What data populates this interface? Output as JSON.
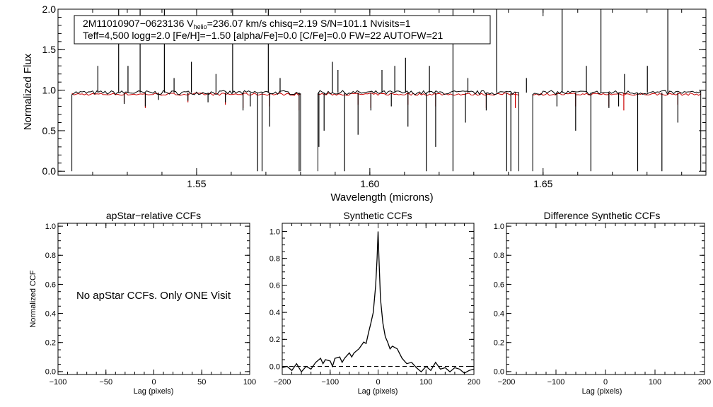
{
  "info_box": {
    "line1_prefix": "2M11010907−0623136  V",
    "line1_sub": "helio",
    "line1_suffix": "=236.07 km/s  chisq=2.19  S/N=101.1  Nvisits=1",
    "line2": "Teff=4,500 logg=2.0 [Fe/H]=−1.50 [alpha/Fe]=0.0 [C/Fe]=0.0 FW=22 AUTOFW=21"
  },
  "no_ccf_message": "No apStar CCFs.  Only ONE Visit",
  "colors": {
    "observed": "#000000",
    "model": "#cc0000"
  },
  "chart_data": [
    {
      "type": "line",
      "id": "spectrum",
      "title": "",
      "xlabel": "Wavelength (microns)",
      "ylabel": "Normalized Flux",
      "xlim": [
        1.51,
        1.697
      ],
      "ylim": [
        -0.05,
        2.0
      ],
      "xticks": [
        "1.55",
        "1.60",
        "1.65"
      ],
      "xtick_values": [
        1.55,
        1.6,
        1.65
      ],
      "yticks": [
        "0.0",
        "0.5",
        "1.0",
        "1.5",
        "2.0"
      ],
      "ytick_values": [
        0.0,
        0.5,
        1.0,
        1.5,
        2.0
      ],
      "chips": [
        [
          1.514,
          1.58
        ],
        [
          1.585,
          1.643
        ],
        [
          1.647,
          1.6955
        ]
      ],
      "continuum": 0.97,
      "series": [
        {
          "name": "observed",
          "color": "#000000"
        },
        {
          "name": "model",
          "color": "#cc0000"
        }
      ],
      "spikes": [
        {
          "x": 1.5215,
          "y": 1.3
        },
        {
          "x": 1.5275,
          "y": 2.0
        },
        {
          "x": 1.5302,
          "y": 1.3
        },
        {
          "x": 1.5337,
          "y": 2.0
        },
        {
          "x": 1.5407,
          "y": 2.0
        },
        {
          "x": 1.5435,
          "y": 1.15
        },
        {
          "x": 1.5485,
          "y": 1.35
        },
        {
          "x": 1.5556,
          "y": 1.2
        },
        {
          "x": 1.5604,
          "y": 2.0
        },
        {
          "x": 1.5707,
          "y": 2.0
        },
        {
          "x": 1.5741,
          "y": 1.15
        },
        {
          "x": 1.5892,
          "y": 1.35
        },
        {
          "x": 1.5908,
          "y": 1.25
        },
        {
          "x": 1.6035,
          "y": 1.25
        },
        {
          "x": 1.6072,
          "y": 1.3
        },
        {
          "x": 1.6103,
          "y": 1.4
        },
        {
          "x": 1.6172,
          "y": 1.3
        },
        {
          "x": 1.624,
          "y": 2.0
        },
        {
          "x": 1.6283,
          "y": 1.15
        },
        {
          "x": 1.6366,
          "y": 2.0
        },
        {
          "x": 1.6452,
          "y": 1.15
        },
        {
          "x": 1.6555,
          "y": 2.0
        },
        {
          "x": 1.6625,
          "y": 1.3
        },
        {
          "x": 1.6667,
          "y": 2.0
        },
        {
          "x": 1.6735,
          "y": 1.2
        },
        {
          "x": 1.6801,
          "y": 1.3
        },
        {
          "x": 1.686,
          "y": 2.0
        }
      ],
      "dips": [
        {
          "x": 1.5291,
          "y": 0.83
        },
        {
          "x": 1.5352,
          "y": 0.8
        },
        {
          "x": 1.539,
          "y": 0.88
        },
        {
          "x": 1.5475,
          "y": 0.87
        },
        {
          "x": 1.5533,
          "y": 0.85
        },
        {
          "x": 1.5583,
          "y": 0.85
        },
        {
          "x": 1.5634,
          "y": 0.75
        },
        {
          "x": 1.5655,
          "y": 0.8
        },
        {
          "x": 1.5676,
          "y": 0.0
        },
        {
          "x": 1.5689,
          "y": 0.0
        },
        {
          "x": 1.5711,
          "y": 0.55
        },
        {
          "x": 1.5796,
          "y": 0.0
        },
        {
          "x": 1.5853,
          "y": 0.3
        },
        {
          "x": 1.5868,
          "y": 0.5
        },
        {
          "x": 1.5927,
          "y": 0.0
        },
        {
          "x": 1.5966,
          "y": 0.45
        },
        {
          "x": 1.6003,
          "y": 0.75
        },
        {
          "x": 1.6062,
          "y": 0.8
        },
        {
          "x": 1.611,
          "y": 0.55
        },
        {
          "x": 1.6163,
          "y": 0.0
        },
        {
          "x": 1.619,
          "y": 0.3
        },
        {
          "x": 1.624,
          "y": 0.0
        },
        {
          "x": 1.6276,
          "y": 0.6
        },
        {
          "x": 1.6336,
          "y": 0.75
        },
        {
          "x": 1.6395,
          "y": 0.0
        },
        {
          "x": 1.6407,
          "y": 0.0
        },
        {
          "x": 1.654,
          "y": 0.8
        },
        {
          "x": 1.6594,
          "y": 0.5
        },
        {
          "x": 1.6638,
          "y": 0.0
        },
        {
          "x": 1.669,
          "y": 0.78
        },
        {
          "x": 1.6718,
          "y": 0.8
        },
        {
          "x": 1.6773,
          "y": 0.0
        },
        {
          "x": 1.6843,
          "y": 0.0
        },
        {
          "x": 1.6889,
          "y": 0.6
        }
      ],
      "model_dips": [
        {
          "x": 1.5291,
          "y": 0.85
        },
        {
          "x": 1.5352,
          "y": 0.78
        },
        {
          "x": 1.5475,
          "y": 0.85
        },
        {
          "x": 1.5583,
          "y": 0.82
        },
        {
          "x": 1.5634,
          "y": 0.78
        },
        {
          "x": 1.5711,
          "y": 0.8
        },
        {
          "x": 1.5796,
          "y": 0.75
        },
        {
          "x": 1.5966,
          "y": 0.82
        },
        {
          "x": 1.6003,
          "y": 0.78
        },
        {
          "x": 1.611,
          "y": 0.82
        },
        {
          "x": 1.619,
          "y": 0.8
        },
        {
          "x": 1.6336,
          "y": 0.78
        },
        {
          "x": 1.642,
          "y": 0.78
        },
        {
          "x": 1.6594,
          "y": 0.8
        },
        {
          "x": 1.669,
          "y": 0.8
        },
        {
          "x": 1.6733,
          "y": 0.75
        },
        {
          "x": 1.6889,
          "y": 0.82
        }
      ]
    },
    {
      "type": "line",
      "id": "apstar-ccf",
      "title": "apStar−relative CCFs",
      "xlabel": "Lag (pixels)",
      "ylabel": "Normalized CCF",
      "xlim": [
        -100,
        100
      ],
      "ylim": [
        -0.02,
        1.02
      ],
      "xticks": [
        "−100",
        "−50",
        "0",
        "50",
        "100"
      ],
      "xtick_values": [
        -100,
        -50,
        0,
        50,
        100
      ],
      "yticks": [
        "0.0",
        "0.2",
        "0.4",
        "0.6",
        "0.8",
        "1.0"
      ],
      "ytick_values": [
        0.0,
        0.2,
        0.4,
        0.6,
        0.8,
        1.0
      ],
      "series": []
    },
    {
      "type": "line",
      "id": "synthetic-ccf",
      "title": "Synthetic CCFs",
      "xlabel": "Lag (pixels)",
      "ylabel": "",
      "xlim": [
        -200,
        200
      ],
      "ylim": [
        -0.06,
        1.06
      ],
      "xticks": [
        "−200",
        "−100",
        "0",
        "100",
        "200"
      ],
      "xtick_values": [
        -200,
        -100,
        0,
        100,
        200
      ],
      "yticks": [
        "0.0",
        "0.2",
        "0.4",
        "0.6",
        "0.8",
        "1.0"
      ],
      "ytick_values": [
        0.0,
        0.2,
        0.4,
        0.6,
        0.8,
        1.0
      ],
      "baseline": 0.0,
      "series": [
        {
          "name": "synthetic",
          "x": [
            -200,
            -190,
            -180,
            -170,
            -160,
            -150,
            -140,
            -130,
            -120,
            -115,
            -110,
            -100,
            -95,
            -90,
            -80,
            -75,
            -70,
            -60,
            -55,
            -50,
            -40,
            -30,
            -25,
            -20,
            -15,
            -10,
            -5,
            -2,
            0,
            2,
            5,
            10,
            15,
            20,
            25,
            30,
            40,
            50,
            60,
            70,
            80,
            90,
            100,
            110,
            120,
            130,
            140,
            150,
            160,
            170,
            180,
            190,
            200
          ],
          "values": [
            -0.01,
            0.0,
            -0.03,
            0.02,
            -0.04,
            0.0,
            -0.02,
            0.03,
            0.06,
            0.02,
            0.05,
            0.04,
            0.0,
            0.06,
            0.07,
            0.03,
            0.06,
            0.1,
            0.07,
            0.1,
            0.13,
            0.18,
            0.17,
            0.25,
            0.32,
            0.4,
            0.6,
            0.8,
            1.0,
            0.78,
            0.5,
            0.32,
            0.22,
            0.18,
            0.13,
            0.15,
            0.13,
            0.06,
            0.02,
            0.03,
            -0.01,
            -0.04,
            0.0,
            -0.03,
            0.03,
            -0.02,
            -0.01,
            -0.04,
            -0.01,
            -0.02,
            -0.05,
            -0.03,
            -0.02
          ]
        }
      ]
    },
    {
      "type": "line",
      "id": "diff-ccf",
      "title": "Difference Synthetic CCFs",
      "xlabel": "Lag (pixels)",
      "ylabel": "",
      "xlim": [
        -200,
        200
      ],
      "ylim": [
        -0.02,
        1.02
      ],
      "xticks": [
        "−200",
        "−100",
        "0",
        "100",
        "200"
      ],
      "xtick_values": [
        -200,
        -100,
        0,
        100,
        200
      ],
      "yticks": [
        "0.0",
        "0.2",
        "0.4",
        "0.6",
        "0.8",
        "1.0"
      ],
      "ytick_values": [
        0.0,
        0.2,
        0.4,
        0.6,
        0.8,
        1.0
      ],
      "series": []
    }
  ]
}
